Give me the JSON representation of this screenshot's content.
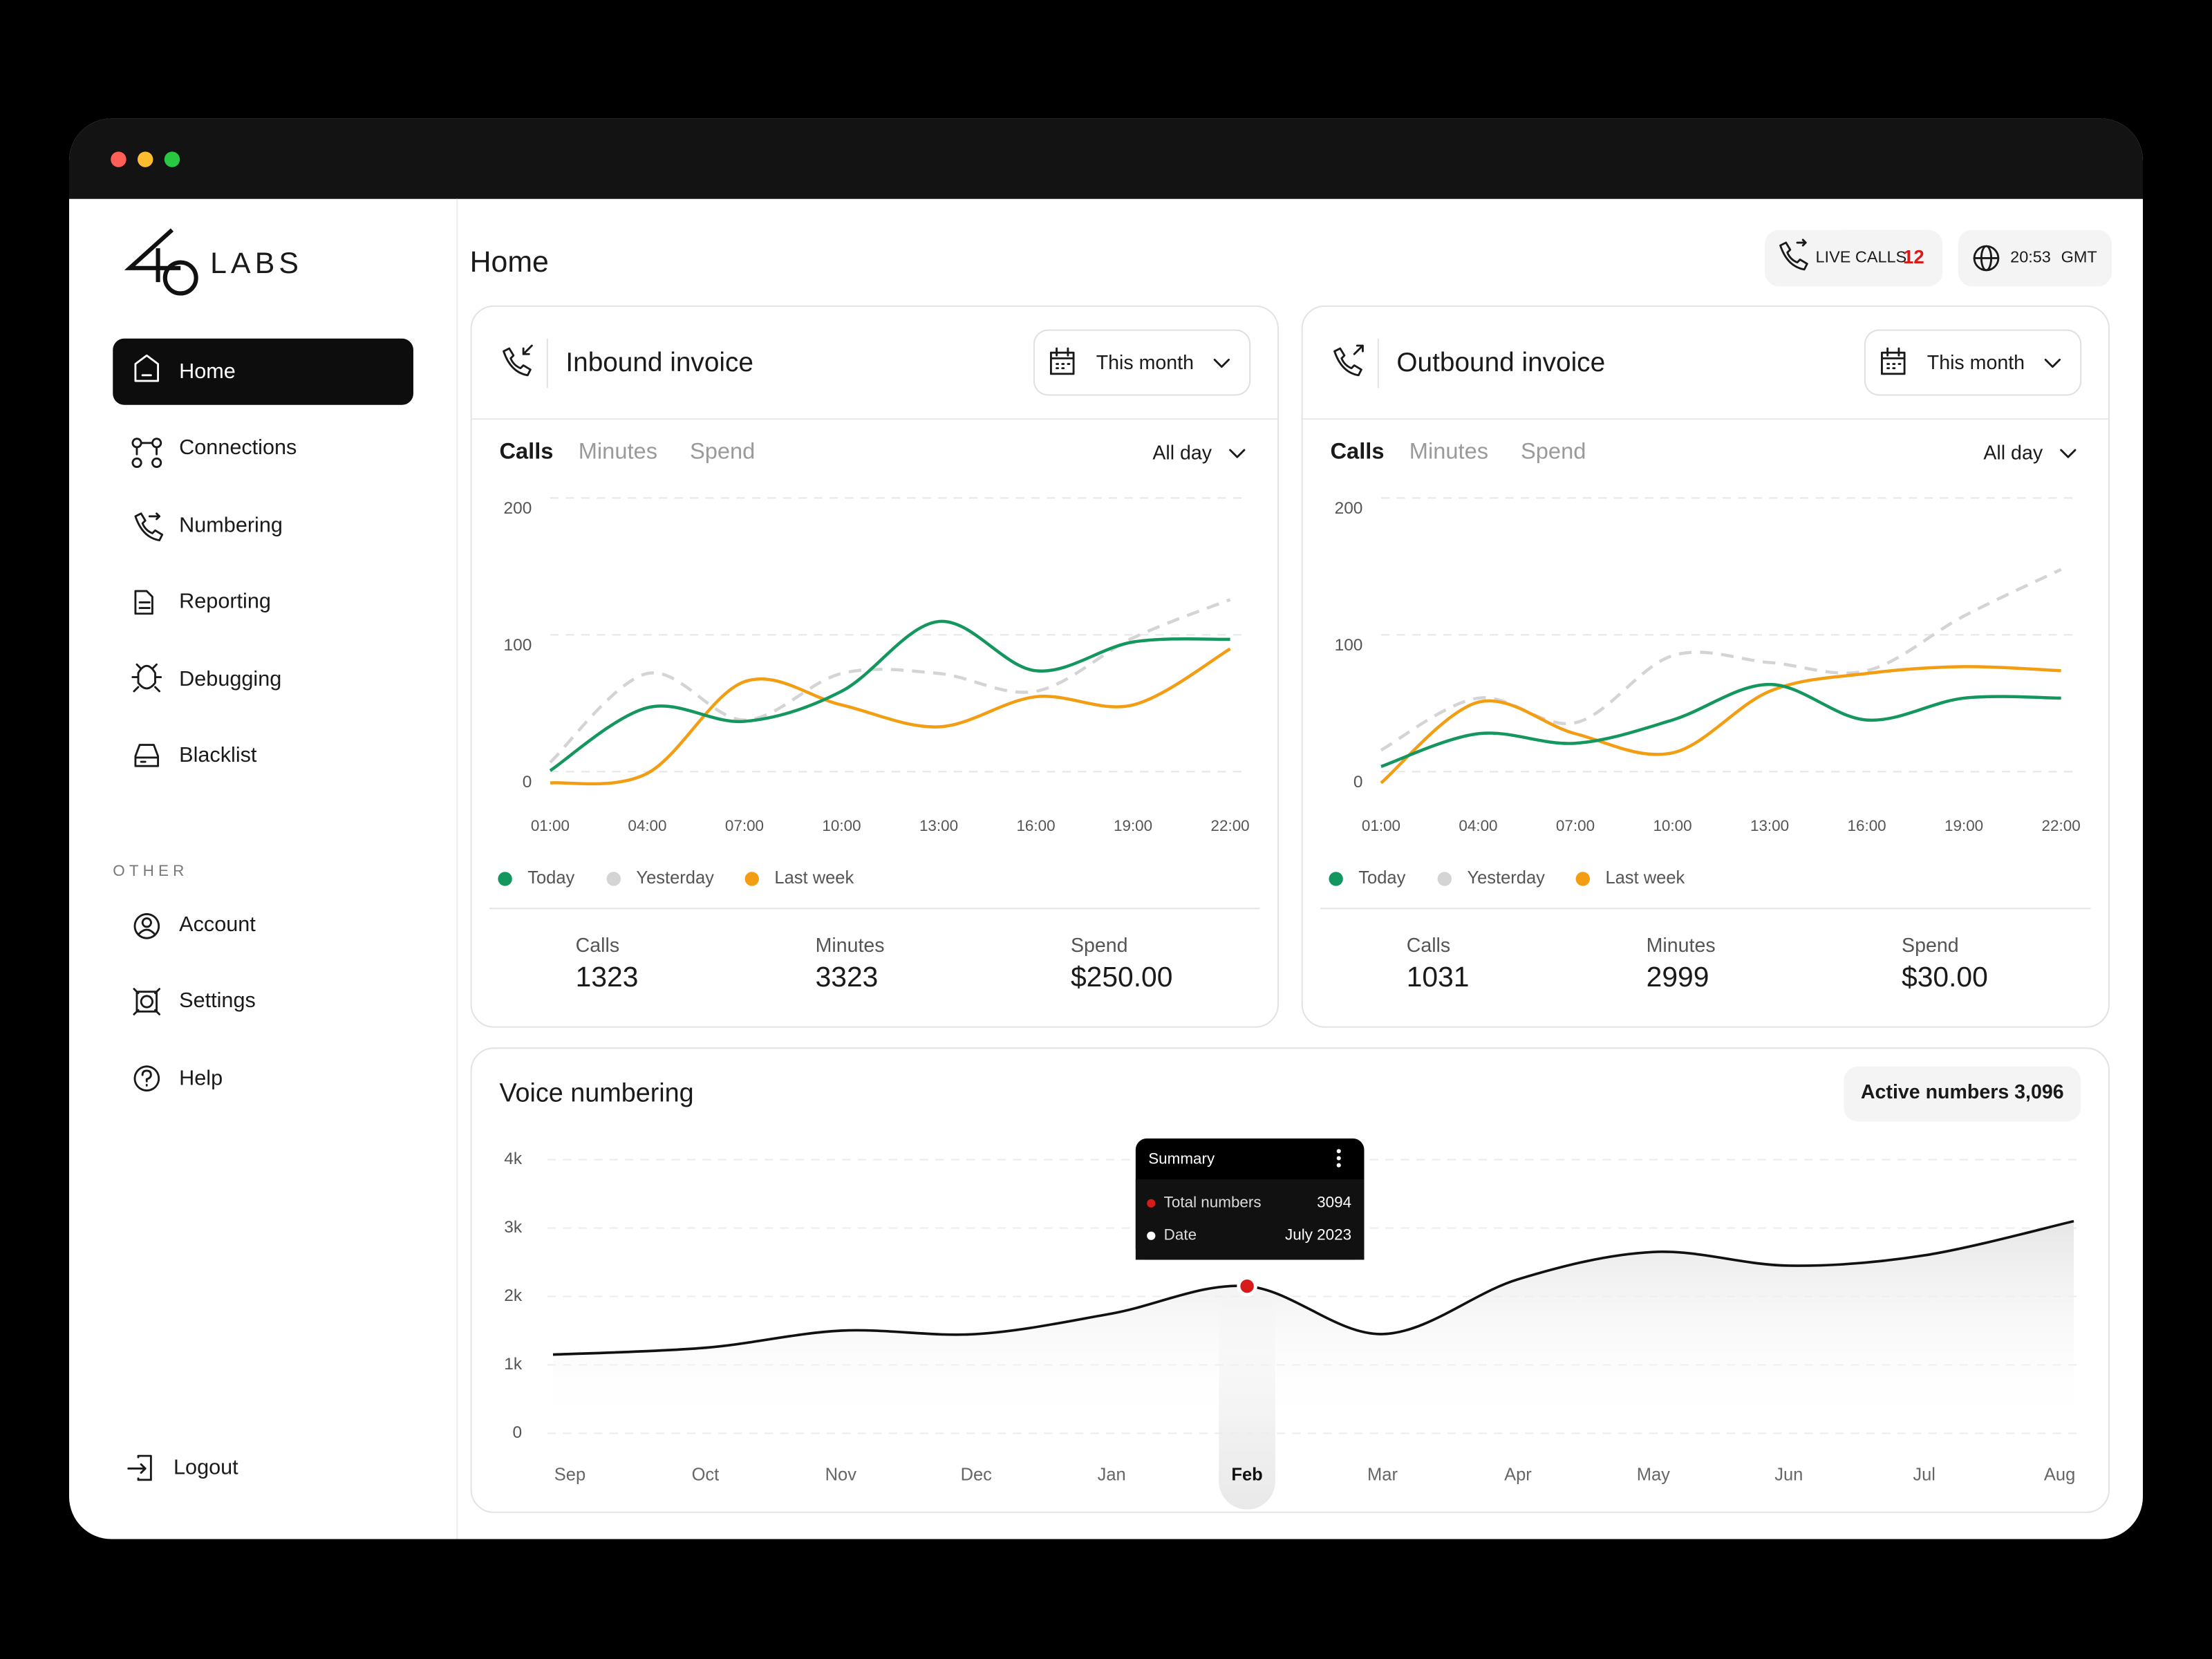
{
  "sidebar": {
    "logo_text": "LABS",
    "nav": [
      "Home",
      "Connections",
      "Numbering",
      "Reporting",
      "Debugging",
      "Blacklist"
    ],
    "section_label": "OTHER",
    "other": [
      "Account",
      "Settings",
      "Help"
    ],
    "logout": "Logout"
  },
  "header": {
    "title": "Home",
    "live_calls_label": "LIVE CALLS",
    "live_calls_count": 12,
    "time": "20:53",
    "timezone": "GMT"
  },
  "cards": [
    {
      "title": "Inbound invoice",
      "period": "This month",
      "tabs": [
        "Calls",
        "Minutes",
        "Spend"
      ],
      "range": "All day",
      "stats": [
        {
          "label": "Calls",
          "value": 1323
        },
        {
          "label": "Minutes",
          "value": 3323
        },
        {
          "label": "Spend",
          "value": "$250.00"
        }
      ]
    },
    {
      "title": "Outbound invoice",
      "period": "This month",
      "tabs": [
        "Calls",
        "Minutes",
        "Spend"
      ],
      "range": "All day",
      "stats": [
        {
          "label": "Calls",
          "value": 1031
        },
        {
          "label": "Minutes",
          "value": 2999
        },
        {
          "label": "Spend",
          "value": "$30.00"
        }
      ]
    }
  ],
  "voice_numbering": {
    "title": "Voice numbering",
    "badge": "Active numbers 3,096",
    "tooltip": {
      "title": "Summary",
      "rows": [
        {
          "label": "Total numbers",
          "value": 3094
        },
        {
          "label": "Date",
          "value": "July 2023"
        }
      ]
    }
  },
  "chart_data": [
    {
      "type": "line",
      "categories": [
        "01:00",
        "04:00",
        "07:00",
        "10:00",
        "13:00",
        "16:00",
        "19:00",
        "22:00"
      ],
      "ylim": [
        0,
        200
      ],
      "yticks": [
        0,
        100,
        200
      ],
      "grid": true,
      "series": [
        {
          "name": "Today",
          "color": "#14965f",
          "values": [
            9,
            55,
            45,
            67,
            118,
            82,
            103,
            105
          ]
        },
        {
          "name": "Yesterday",
          "color": "#d4d4d4",
          "dashed": true,
          "values": [
            15,
            80,
            46,
            80,
            80,
            67,
            106,
            134
          ]
        },
        {
          "name": "Last week",
          "color": "#f29d12",
          "values": [
            0,
            7,
            74,
            57,
            41,
            63,
            57,
            98
          ]
        }
      ]
    },
    {
      "type": "line",
      "categories": [
        "01:00",
        "04:00",
        "07:00",
        "10:00",
        "13:00",
        "16:00",
        "19:00",
        "22:00"
      ],
      "ylim": [
        0,
        200
      ],
      "yticks": [
        0,
        100,
        200
      ],
      "grid": true,
      "series": [
        {
          "name": "Today",
          "color": "#14965f",
          "values": [
            12,
            36,
            29,
            46,
            72,
            46,
            62,
            62
          ]
        },
        {
          "name": "Yesterday",
          "color": "#d4d4d4",
          "dashed": true,
          "values": [
            24,
            62,
            44,
            93,
            88,
            82,
            122,
            156
          ]
        },
        {
          "name": "Last week",
          "color": "#f29d12",
          "values": [
            0,
            59,
            36,
            22,
            67,
            80,
            85,
            82
          ]
        }
      ]
    },
    {
      "type": "area",
      "categories": [
        "Sep",
        "Oct",
        "Nov",
        "Dec",
        "Jan",
        "Feb",
        "Mar",
        "Apr",
        "May",
        "Jun",
        "Jul",
        "Aug"
      ],
      "values": [
        1150,
        1250,
        1500,
        1450,
        1750,
        2150,
        1450,
        2250,
        2650,
        2450,
        2600,
        3100
      ],
      "color": "#111111",
      "ylim": [
        0,
        4000
      ],
      "yticks": [
        0,
        {
          "value": 1000,
          "label": "1k"
        },
        {
          "value": 2000,
          "label": "2k"
        },
        {
          "value": 3000,
          "label": "3k"
        },
        {
          "value": 4000,
          "label": "4k"
        }
      ],
      "grid": true,
      "highlight": "Feb"
    }
  ]
}
